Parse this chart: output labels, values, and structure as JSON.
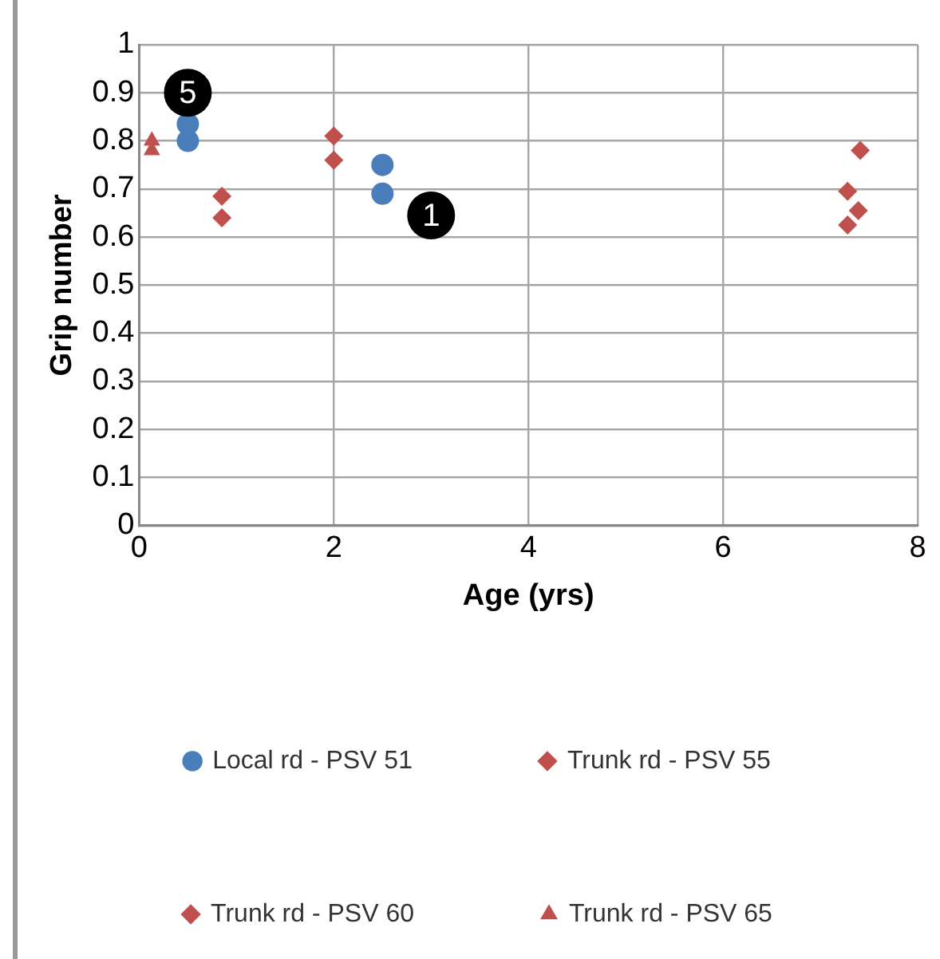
{
  "chart_data": {
    "type": "scatter",
    "xlabel": "Age (yrs)",
    "ylabel": "Grip number",
    "xlim": [
      0,
      8
    ],
    "xticks": [
      0,
      2,
      4,
      6,
      8
    ],
    "ylim": [
      0,
      1
    ],
    "yticks": [
      0,
      0.1,
      0.2,
      0.3,
      0.4,
      0.5,
      0.6,
      0.7,
      0.8,
      0.9,
      1
    ],
    "grid": true,
    "legend": "bottom",
    "series": [
      {
        "name": "Local rd - PSV 51",
        "color": "#4a7ebb",
        "marker": "circle",
        "x": [
          0.5,
          0.5,
          2.5,
          2.5
        ],
        "values": [
          0.835,
          0.8,
          0.75,
          0.69
        ]
      },
      {
        "name": "Trunk rd - PSV 55",
        "color": "#c0504d",
        "marker": "diamond",
        "x": [
          0.85,
          0.85,
          2,
          2
        ],
        "values": [
          0.685,
          0.64,
          0.81,
          0.76
        ]
      },
      {
        "name": "Trunk rd - PSV 60",
        "color": "#c0504d",
        "marker": "diamond",
        "x": [
          7.41,
          7.28,
          7.39,
          7.28
        ],
        "values": [
          0.78,
          0.695,
          0.655,
          0.625
        ]
      },
      {
        "name": "Trunk rd - PSV 65",
        "color": "#c0504d",
        "marker": "triangle",
        "x": [
          0.13,
          0.13
        ],
        "values": [
          0.8,
          0.78
        ]
      }
    ],
    "annotations": [
      {
        "text": "5",
        "x": 0.5,
        "y": 0.9
      },
      {
        "text": "1",
        "x": 3,
        "y": 0.645
      }
    ]
  }
}
